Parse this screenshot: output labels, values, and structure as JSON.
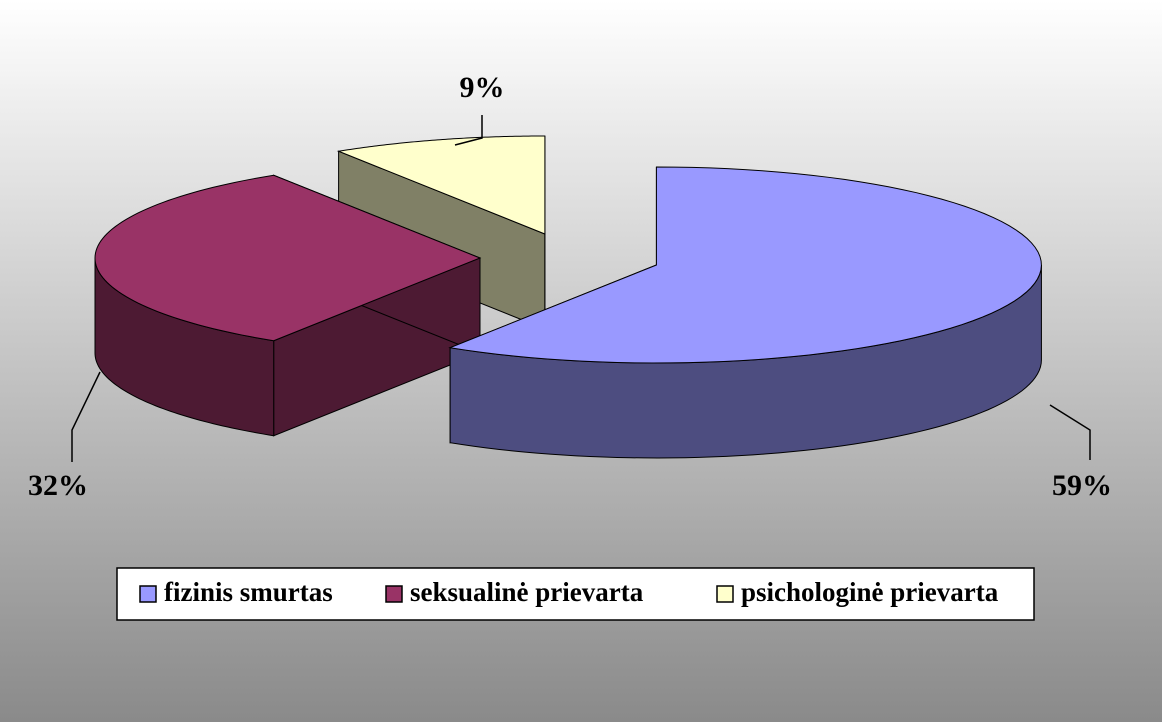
{
  "chart_data": {
    "type": "pie",
    "categories": [
      "fizinis smurtas",
      "seksualinė prievarta",
      "psichologinė prievarta"
    ],
    "values": [
      59,
      32,
      9
    ],
    "value_labels": [
      "59%",
      "32%",
      "9%"
    ],
    "colors": [
      "#9999ff",
      "#993366",
      "#ffffcc"
    ],
    "legend": "bottom"
  }
}
